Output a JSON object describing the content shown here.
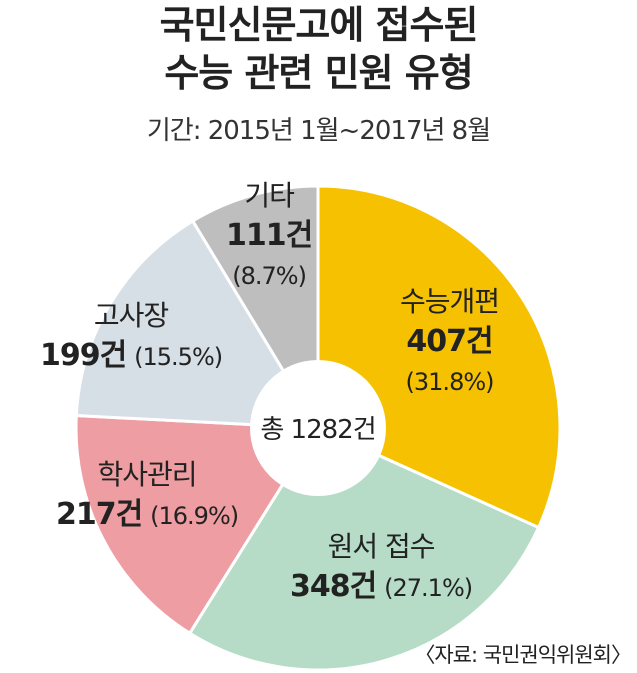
{
  "title_line1": "국민신문고에 접수된",
  "title_line2": "수능 관련 민원 유형",
  "subtitle": "기간: 2015년 1월~2017년 8월",
  "source": "〈자료: 국민권익위원회〉",
  "chart_data": {
    "type": "pie",
    "title": "국민신문고에 접수된 수능 관련 민원 유형",
    "center_label": "총 1282건",
    "total": 1282,
    "slices": [
      {
        "label": "수능개편",
        "count_label": "407건",
        "pct_label": "(31.8%)",
        "value": 407,
        "percent": 31.8,
        "color": "#f5c100"
      },
      {
        "label": "원서 접수",
        "count_label": "348건",
        "pct_label": "(27.1%)",
        "value": 348,
        "percent": 27.1,
        "color": "#b6dcc8"
      },
      {
        "label": "학사관리",
        "count_label": "217건",
        "pct_label": "(16.9%)",
        "value": 217,
        "percent": 16.9,
        "color": "#ee9ea2"
      },
      {
        "label": "고사장",
        "count_label": "199건",
        "pct_label": "(15.5%)",
        "value": 199,
        "percent": 15.5,
        "color": "#d6dee6"
      },
      {
        "label": "기타",
        "count_label": "111건",
        "pct_label": "(8.7%)",
        "value": 111,
        "percent": 8.7,
        "color": "#bebebe"
      }
    ]
  }
}
